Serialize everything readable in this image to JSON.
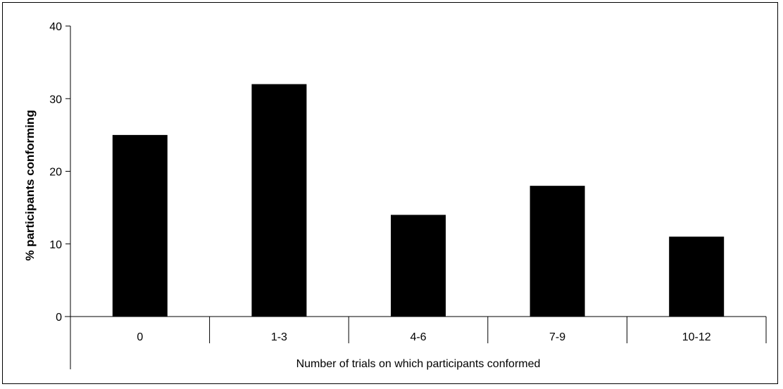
{
  "chart_data": {
    "type": "bar",
    "categories": [
      "0",
      "1-3",
      "4-6",
      "7-9",
      "10-12"
    ],
    "values": [
      25,
      32,
      14,
      18,
      11
    ],
    "xlabel": "Number of trials on which participants conformed",
    "ylabel": "% participants conforming",
    "ylim": [
      0,
      40
    ],
    "yticks": [
      "0",
      "10",
      "20",
      "30",
      "40"
    ],
    "grid": false,
    "bar_color": "#000000"
  }
}
